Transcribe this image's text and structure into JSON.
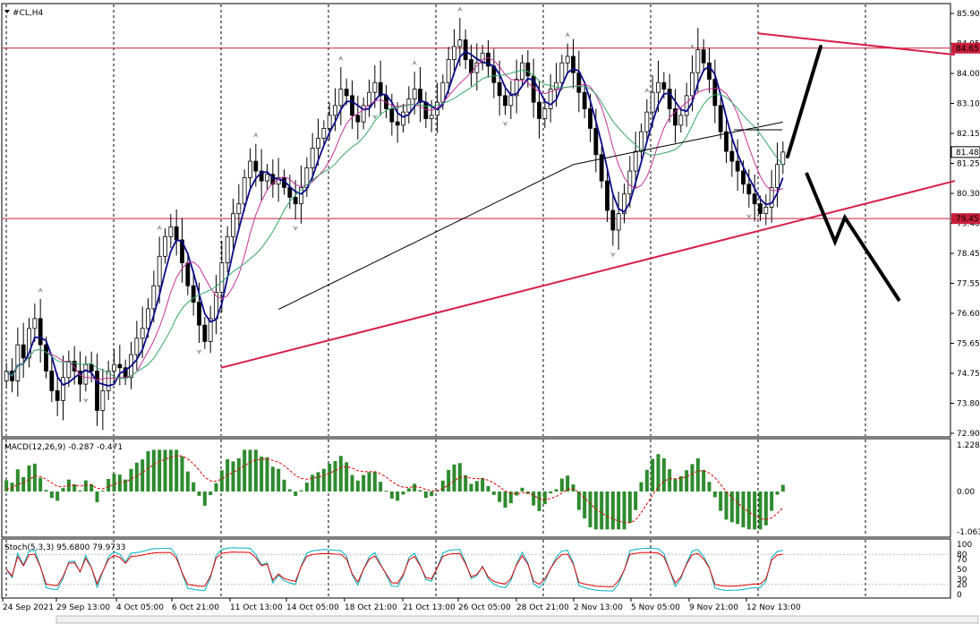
{
  "symbol_title": "#CL,H4",
  "colors": {
    "bull": "#000000",
    "bear": "#000000",
    "ma_fast": "#0a0a8a",
    "ma_mid": "#c8329b",
    "ma_slow": "#33aa66",
    "ma_long": "#000000",
    "trend": "#d8204a",
    "level": "#c81e3c",
    "macd_hist": "#2e8b2e",
    "macd_signal": "#e00000",
    "stoch_main": "#00b0c0",
    "stoch_signal": "#e00000",
    "fractal": "#a0a0a0"
  },
  "price_panel": {
    "yticks": [
      "85.90",
      "84.95",
      "84.00",
      "83.10",
      "82.15",
      "81.25",
      "80.30",
      "79.40",
      "78.45",
      "77.55",
      "76.60",
      "75.65",
      "74.75",
      "73.80",
      "72.90"
    ],
    "level_high_label": "84.65",
    "level_low_label": "79.45",
    "current_label": "81.48"
  },
  "macd_panel": {
    "title": "MACD(12,26,9) -0.287 -0.471",
    "yticks": [
      "1.228",
      "0.00",
      "-1.063"
    ]
  },
  "stoch_panel": {
    "title": "Stoch(5,3,3) 95.6800 79.9733",
    "yticks": [
      "100",
      "80",
      "70",
      "50",
      "30",
      "20",
      "0"
    ]
  },
  "x_labels": [
    "24 Sep 2021",
    "29 Sep 13:00",
    "4 Oct 05:00",
    "6 Oct 21:00",
    "11 Oct 13:00",
    "14 Oct 05:00",
    "18 Oct 21:00",
    "21 Oct 13:00",
    "26 Oct 05:00",
    "28 Oct 21:00",
    "2 Nov 13:00",
    "5 Nov 05:00",
    "9 Nov 21:00",
    "12 Nov 13:00"
  ],
  "chart_data": {
    "type": "candlestick",
    "symbol": "#CL",
    "timeframe": "H4",
    "ylim": [
      72.9,
      85.9
    ],
    "closes": [
      74.8,
      74.5,
      75.6,
      75.2,
      76.1,
      76.4,
      75.6,
      74.8,
      74.2,
      73.9,
      74.6,
      75.1,
      74.8,
      74.4,
      75.0,
      74.8,
      73.6,
      74.2,
      74.8,
      75.0,
      74.9,
      74.6,
      75.3,
      75.8,
      76.1,
      76.7,
      77.4,
      78.3,
      78.9,
      79.2,
      78.8,
      78.1,
      77.4,
      76.9,
      76.2,
      75.7,
      76.4,
      77.2,
      78.1,
      78.9,
      79.6,
      79.9,
      80.7,
      81.2,
      80.9,
      80.6,
      80.8,
      80.5,
      80.7,
      80.4,
      80.1,
      79.9,
      80.4,
      81.0,
      81.6,
      81.9,
      82.2,
      82.6,
      82.9,
      83.4,
      83.2,
      82.6,
      82.4,
      82.9,
      83.3,
      83.6,
      83.2,
      82.8,
      82.4,
      82.3,
      82.7,
      83.1,
      83.4,
      83.0,
      82.5,
      82.6,
      83.0,
      83.6,
      84.3,
      84.7,
      84.9,
      84.3,
      83.9,
      84.2,
      84.5,
      84.1,
      83.6,
      83.2,
      82.9,
      83.2,
      83.7,
      84.2,
      83.8,
      83.0,
      82.5,
      82.8,
      83.4,
      83.6,
      84.2,
      84.4,
      83.9,
      83.3,
      82.8,
      82.2,
      81.4,
      80.6,
      79.7,
      79.1,
      79.6,
      80.2,
      80.9,
      81.5,
      82.1,
      82.7,
      83.3,
      83.6,
      83.4,
      82.8,
      82.3,
      82.6,
      83.2,
      83.9,
      84.6,
      84.2,
      83.7,
      82.9,
      82.1,
      81.5,
      81.2,
      80.9,
      80.5,
      80.2,
      79.9,
      79.6,
      79.8,
      80.4,
      81.1,
      81.48
    ],
    "moving_averages": [
      "fast",
      "mid",
      "slow",
      "long"
    ],
    "horizontal_levels": [
      84.65,
      79.45
    ],
    "trendlines": [
      {
        "role": "upper",
        "from": [
          21,
          85.1
        ],
        "to": [
          26.5,
          84.45
        ]
      },
      {
        "role": "lower",
        "from": [
          6,
          74.9
        ],
        "to": [
          26.5,
          80.6
        ]
      }
    ],
    "macd": {
      "fast": 12,
      "slow": 26,
      "signal": 9,
      "main": -0.287,
      "signal_value": -0.471,
      "ylim": [
        -1.063,
        1.228
      ]
    },
    "stochastic": {
      "k": 5,
      "d": 3,
      "slowing": 3,
      "main": 95.68,
      "signal": 79.9733,
      "ylim": [
        0,
        100
      ]
    }
  }
}
